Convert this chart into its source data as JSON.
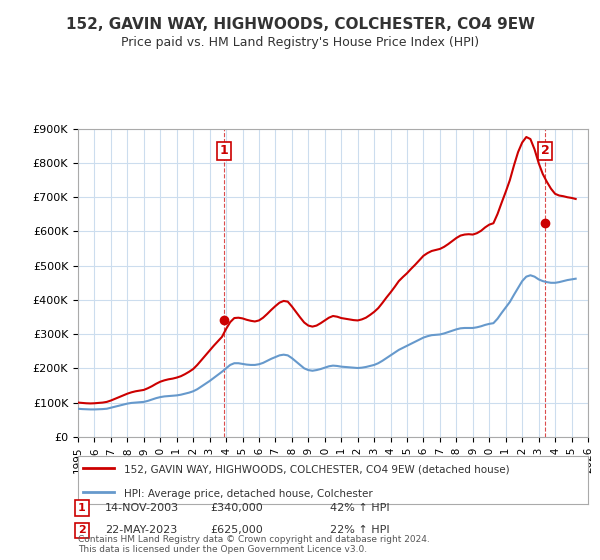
{
  "title": "152, GAVIN WAY, HIGHWOODS, COLCHESTER, CO4 9EW",
  "subtitle": "Price paid vs. HM Land Registry's House Price Index (HPI)",
  "legend_line1": "152, GAVIN WAY, HIGHWOODS, COLCHESTER, CO4 9EW (detached house)",
  "legend_line2": "HPI: Average price, detached house, Colchester",
  "annotation1_label": "1",
  "annotation1_date": "14-NOV-2003",
  "annotation1_price": "£340,000",
  "annotation1_hpi": "42% ↑ HPI",
  "annotation2_label": "2",
  "annotation2_date": "22-MAY-2023",
  "annotation2_price": "£625,000",
  "annotation2_hpi": "22% ↑ HPI",
  "footer": "Contains HM Land Registry data © Crown copyright and database right 2024.\nThis data is licensed under the Open Government Licence v3.0.",
  "red_color": "#cc0000",
  "blue_color": "#6699cc",
  "background_color": "#ffffff",
  "grid_color": "#ccddee",
  "ylim": [
    0,
    900000
  ],
  "yticks": [
    0,
    100000,
    200000,
    300000,
    400000,
    500000,
    600000,
    700000,
    800000,
    900000
  ],
  "hpi_data": {
    "years": [
      1995.0,
      1995.25,
      1995.5,
      1995.75,
      1996.0,
      1996.25,
      1996.5,
      1996.75,
      1997.0,
      1997.25,
      1997.5,
      1997.75,
      1998.0,
      1998.25,
      1998.5,
      1998.75,
      1999.0,
      1999.25,
      1999.5,
      1999.75,
      2000.0,
      2000.25,
      2000.5,
      2000.75,
      2001.0,
      2001.25,
      2001.5,
      2001.75,
      2002.0,
      2002.25,
      2002.5,
      2002.75,
      2003.0,
      2003.25,
      2003.5,
      2003.75,
      2004.0,
      2004.25,
      2004.5,
      2004.75,
      2005.0,
      2005.25,
      2005.5,
      2005.75,
      2006.0,
      2006.25,
      2006.5,
      2006.75,
      2007.0,
      2007.25,
      2007.5,
      2007.75,
      2008.0,
      2008.25,
      2008.5,
      2008.75,
      2009.0,
      2009.25,
      2009.5,
      2009.75,
      2010.0,
      2010.25,
      2010.5,
      2010.75,
      2011.0,
      2011.25,
      2011.5,
      2011.75,
      2012.0,
      2012.25,
      2012.5,
      2012.75,
      2013.0,
      2013.25,
      2013.5,
      2013.75,
      2014.0,
      2014.25,
      2014.5,
      2014.75,
      2015.0,
      2015.25,
      2015.5,
      2015.75,
      2016.0,
      2016.25,
      2016.5,
      2016.75,
      2017.0,
      2017.25,
      2017.5,
      2017.75,
      2018.0,
      2018.25,
      2018.5,
      2018.75,
      2019.0,
      2019.25,
      2019.5,
      2019.75,
      2020.0,
      2020.25,
      2020.5,
      2020.75,
      2021.0,
      2021.25,
      2021.5,
      2021.75,
      2022.0,
      2022.25,
      2022.5,
      2022.75,
      2023.0,
      2023.25,
      2023.5,
      2023.75,
      2024.0,
      2024.25,
      2024.5,
      2024.75,
      2025.0,
      2025.25
    ],
    "values": [
      82000,
      81000,
      80500,
      80000,
      80000,
      80500,
      81000,
      82000,
      85000,
      88000,
      91000,
      94000,
      97000,
      99000,
      100000,
      101000,
      102000,
      105000,
      109000,
      113000,
      116000,
      118000,
      119000,
      120000,
      121000,
      123000,
      126000,
      129000,
      133000,
      139000,
      147000,
      155000,
      163000,
      172000,
      181000,
      190000,
      200000,
      210000,
      215000,
      215000,
      213000,
      211000,
      210000,
      210000,
      212000,
      216000,
      222000,
      228000,
      233000,
      238000,
      240000,
      238000,
      230000,
      220000,
      210000,
      200000,
      195000,
      193000,
      195000,
      198000,
      202000,
      206000,
      208000,
      207000,
      205000,
      204000,
      203000,
      202000,
      201000,
      202000,
      204000,
      207000,
      210000,
      215000,
      222000,
      230000,
      238000,
      246000,
      254000,
      260000,
      266000,
      272000,
      278000,
      284000,
      290000,
      294000,
      297000,
      298000,
      299000,
      302000,
      306000,
      310000,
      314000,
      317000,
      318000,
      318000,
      318000,
      320000,
      323000,
      327000,
      330000,
      332000,
      345000,
      362000,
      378000,
      394000,
      415000,
      435000,
      455000,
      468000,
      472000,
      468000,
      460000,
      455000,
      452000,
      450000,
      450000,
      452000,
      455000,
      458000,
      460000,
      462000
    ]
  },
  "price_data": {
    "years": [
      1995.0,
      1995.25,
      1995.5,
      1995.75,
      1996.0,
      1996.25,
      1996.5,
      1996.75,
      1997.0,
      1997.25,
      1997.5,
      1997.75,
      1998.0,
      1998.25,
      1998.5,
      1998.75,
      1999.0,
      1999.25,
      1999.5,
      1999.75,
      2000.0,
      2000.25,
      2000.5,
      2000.75,
      2001.0,
      2001.25,
      2001.5,
      2001.75,
      2002.0,
      2002.25,
      2002.5,
      2002.75,
      2003.0,
      2003.25,
      2003.5,
      2003.75,
      2004.0,
      2004.25,
      2004.5,
      2004.75,
      2005.0,
      2005.25,
      2005.5,
      2005.75,
      2006.0,
      2006.25,
      2006.5,
      2006.75,
      2007.0,
      2007.25,
      2007.5,
      2007.75,
      2008.0,
      2008.25,
      2008.5,
      2008.75,
      2009.0,
      2009.25,
      2009.5,
      2009.75,
      2010.0,
      2010.25,
      2010.5,
      2010.75,
      2011.0,
      2011.25,
      2011.5,
      2011.75,
      2012.0,
      2012.25,
      2012.5,
      2012.75,
      2013.0,
      2013.25,
      2013.5,
      2013.75,
      2014.0,
      2014.25,
      2014.5,
      2014.75,
      2015.0,
      2015.25,
      2015.5,
      2015.75,
      2016.0,
      2016.25,
      2016.5,
      2016.75,
      2017.0,
      2017.25,
      2017.5,
      2017.75,
      2018.0,
      2018.25,
      2018.5,
      2018.75,
      2019.0,
      2019.25,
      2019.5,
      2019.75,
      2020.0,
      2020.25,
      2020.5,
      2020.75,
      2021.0,
      2021.25,
      2021.5,
      2021.75,
      2022.0,
      2022.25,
      2022.5,
      2022.75,
      2023.0,
      2023.25,
      2023.5,
      2023.75,
      2024.0,
      2024.25,
      2024.5,
      2024.75,
      2025.0,
      2025.25
    ],
    "values": [
      100000,
      99000,
      98000,
      97500,
      98000,
      99000,
      100000,
      102000,
      106000,
      111000,
      116000,
      121000,
      126000,
      130000,
      133000,
      135000,
      137000,
      142000,
      148000,
      155000,
      161000,
      165000,
      168000,
      170000,
      173000,
      177000,
      183000,
      190000,
      198000,
      210000,
      224000,
      238000,
      252000,
      266000,
      279000,
      292000,
      315000,
      335000,
      347000,
      348000,
      346000,
      342000,
      339000,
      337000,
      340000,
      348000,
      359000,
      371000,
      382000,
      392000,
      397000,
      395000,
      381000,
      365000,
      349000,
      334000,
      325000,
      322000,
      325000,
      332000,
      340000,
      348000,
      353000,
      351000,
      347000,
      345000,
      343000,
      341000,
      340000,
      343000,
      348000,
      356000,
      365000,
      376000,
      391000,
      407000,
      422000,
      438000,
      455000,
      467000,
      478000,
      491000,
      503000,
      516000,
      529000,
      537000,
      543000,
      546000,
      549000,
      555000,
      563000,
      572000,
      581000,
      588000,
      591000,
      592000,
      591000,
      595000,
      602000,
      612000,
      620000,
      624000,
      651000,
      684000,
      716000,
      750000,
      793000,
      832000,
      860000,
      876000,
      870000,
      840000,
      800000,
      768000,
      745000,
      725000,
      710000,
      705000,
      703000,
      700000,
      698000,
      695000
    ]
  },
  "sale1_year": 2003.87,
  "sale1_price": 340000,
  "sale2_year": 2023.38,
  "sale2_price": 625000,
  "xlim": [
    1995.0,
    2026.0
  ],
  "xtick_years": [
    1995,
    1996,
    1997,
    1998,
    1999,
    2000,
    2001,
    2002,
    2003,
    2004,
    2005,
    2006,
    2007,
    2008,
    2009,
    2010,
    2011,
    2012,
    2013,
    2014,
    2015,
    2016,
    2017,
    2018,
    2019,
    2020,
    2021,
    2022,
    2023,
    2024,
    2025,
    2026
  ]
}
